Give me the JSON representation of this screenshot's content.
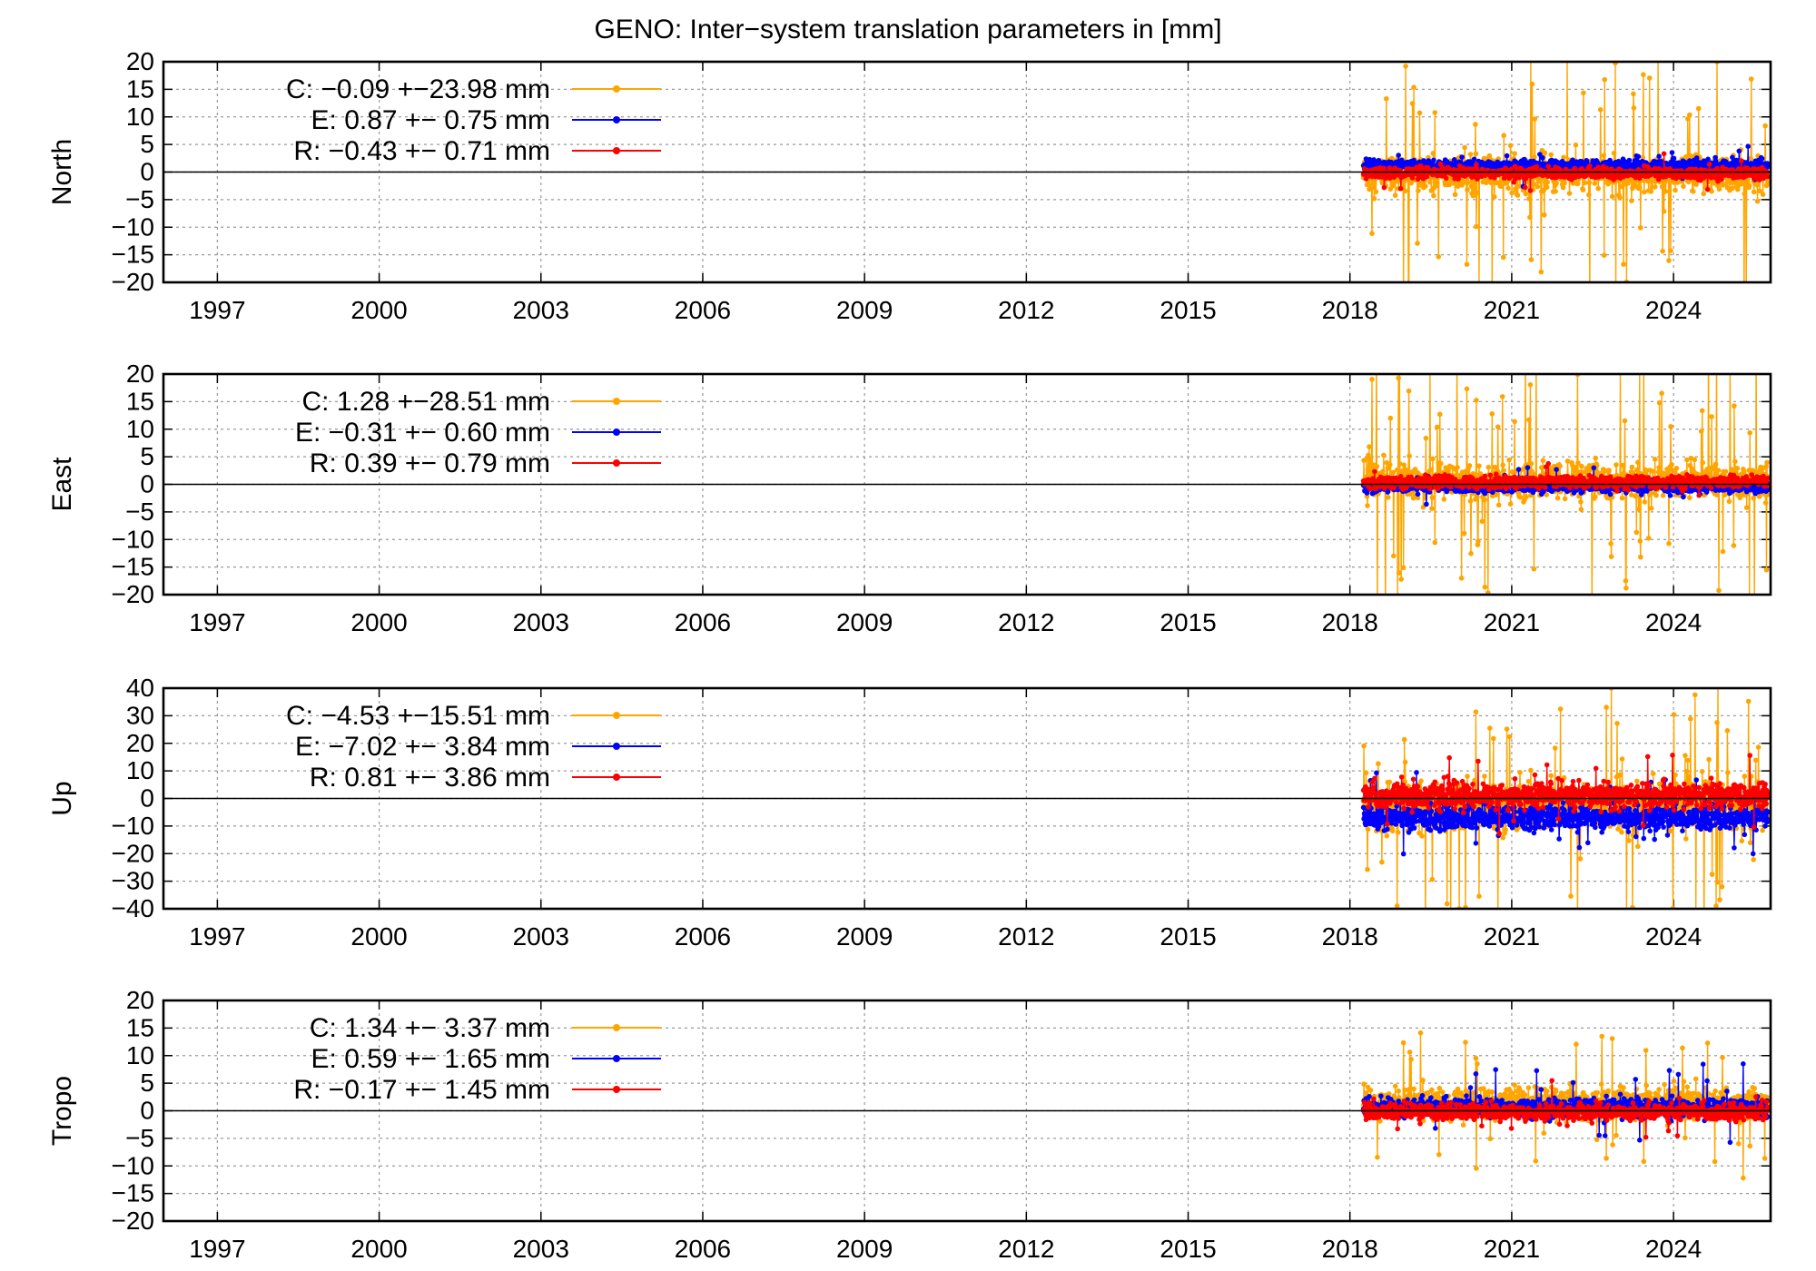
{
  "chart_data": {
    "type": "line",
    "title": "GENO: Inter−system translation parameters in [mm]",
    "x_ticks": [
      "1997",
      "2000",
      "2003",
      "2006",
      "2009",
      "2012",
      "2015",
      "2018",
      "2021",
      "2024"
    ],
    "xlim": [
      1996,
      2025.8
    ],
    "colors": {
      "C": "#FFA500",
      "E": "#0000FF",
      "R": "#FF0000"
    },
    "panels": [
      {
        "ylabel": "North",
        "ylim": [
          -20,
          20
        ],
        "y_ticks": [
          "20",
          "15",
          "10",
          "5",
          "0",
          "−5",
          "−10",
          "−15",
          "−20"
        ],
        "legend": [
          {
            "key": "C",
            "text": "C:  −0.09 +−23.98 mm"
          },
          {
            "key": "E",
            "text": "E:   0.87 +− 0.75 mm"
          },
          {
            "key": "R",
            "text": "R:  −0.43 +− 0.71 mm"
          }
        ],
        "series": [
          {
            "name": "C",
            "x_start": 2018.25,
            "x_end": 2025.75,
            "mean": -0.5,
            "spread": 3.0,
            "spike_rate": 0.06,
            "spike_amp": 20
          },
          {
            "name": "E",
            "x_start": 2018.25,
            "x_end": 2025.75,
            "mean": 1.2,
            "spread": 0.9,
            "spike_rate": 0.01,
            "spike_amp": 3
          },
          {
            "name": "R",
            "x_start": 2018.25,
            "x_end": 2025.75,
            "mean": -0.2,
            "spread": 0.9,
            "spike_rate": 0.01,
            "spike_amp": 3
          }
        ]
      },
      {
        "ylabel": "East",
        "ylim": [
          -20,
          20
        ],
        "y_ticks": [
          "20",
          "15",
          "10",
          "5",
          "0",
          "−5",
          "−10",
          "−15",
          "−20"
        ],
        "legend": [
          {
            "key": "C",
            "text": "C:   1.28 +−28.51 mm"
          },
          {
            "key": "E",
            "text": "E:  −0.31 +− 0.60 mm"
          },
          {
            "key": "R",
            "text": "R:   0.39 +− 0.79 mm"
          }
        ],
        "series": [
          {
            "name": "C",
            "x_start": 2018.25,
            "x_end": 2025.75,
            "mean": 0.5,
            "spread": 3.0,
            "spike_rate": 0.07,
            "spike_amp": 20
          },
          {
            "name": "E",
            "x_start": 2018.25,
            "x_end": 2025.75,
            "mean": -0.4,
            "spread": 0.9,
            "spike_rate": 0.01,
            "spike_amp": 3
          },
          {
            "name": "R",
            "x_start": 2018.25,
            "x_end": 2025.75,
            "mean": 0.4,
            "spread": 1.0,
            "spike_rate": 0.01,
            "spike_amp": 3
          }
        ]
      },
      {
        "ylabel": "Up",
        "ylim": [
          -40,
          40
        ],
        "y_ticks": [
          "40",
          "30",
          "20",
          "10",
          "0",
          "−10",
          "−20",
          "−30",
          "−40"
        ],
        "legend": [
          {
            "key": "C",
            "text": "C:  −4.53 +−15.51 mm"
          },
          {
            "key": "E",
            "text": "E:  −7.02 +− 3.84 mm"
          },
          {
            "key": "R",
            "text": "R:   0.81 +− 3.86 mm"
          }
        ],
        "series": [
          {
            "name": "C",
            "x_start": 2018.25,
            "x_end": 2025.75,
            "mean": -3,
            "spread": 8,
            "spike_rate": 0.06,
            "spike_amp": 35
          },
          {
            "name": "E",
            "x_start": 2018.25,
            "x_end": 2025.75,
            "mean": -7,
            "spread": 4,
            "spike_rate": 0.02,
            "spike_amp": 12
          },
          {
            "name": "R",
            "x_start": 2018.25,
            "x_end": 2025.75,
            "mean": 1,
            "spread": 4,
            "spike_rate": 0.02,
            "spike_amp": 12
          }
        ]
      },
      {
        "ylabel": "Tropo",
        "ylim": [
          -20,
          20
        ],
        "y_ticks": [
          "20",
          "15",
          "10",
          "5",
          "0",
          "−5",
          "−10",
          "−15",
          "−20"
        ],
        "legend": [
          {
            "key": "C",
            "text": "C:   1.34 +− 3.37 mm"
          },
          {
            "key": "E",
            "text": "E:   0.59 +− 1.65 mm"
          },
          {
            "key": "R",
            "text": "R:  −0.17 +− 1.45 mm"
          }
        ],
        "series": [
          {
            "name": "C",
            "x_start": 2018.25,
            "x_end": 2025.75,
            "mean": 1.3,
            "spread": 2.6,
            "spike_rate": 0.04,
            "spike_amp": 10
          },
          {
            "name": "E",
            "x_start": 2018.25,
            "x_end": 2025.75,
            "mean": 0.6,
            "spread": 1.5,
            "spike_rate": 0.02,
            "spike_amp": 6
          },
          {
            "name": "R",
            "x_start": 2018.25,
            "x_end": 2025.75,
            "mean": -0.2,
            "spread": 1.3,
            "spike_rate": 0.01,
            "spike_amp": 4
          }
        ]
      }
    ]
  }
}
